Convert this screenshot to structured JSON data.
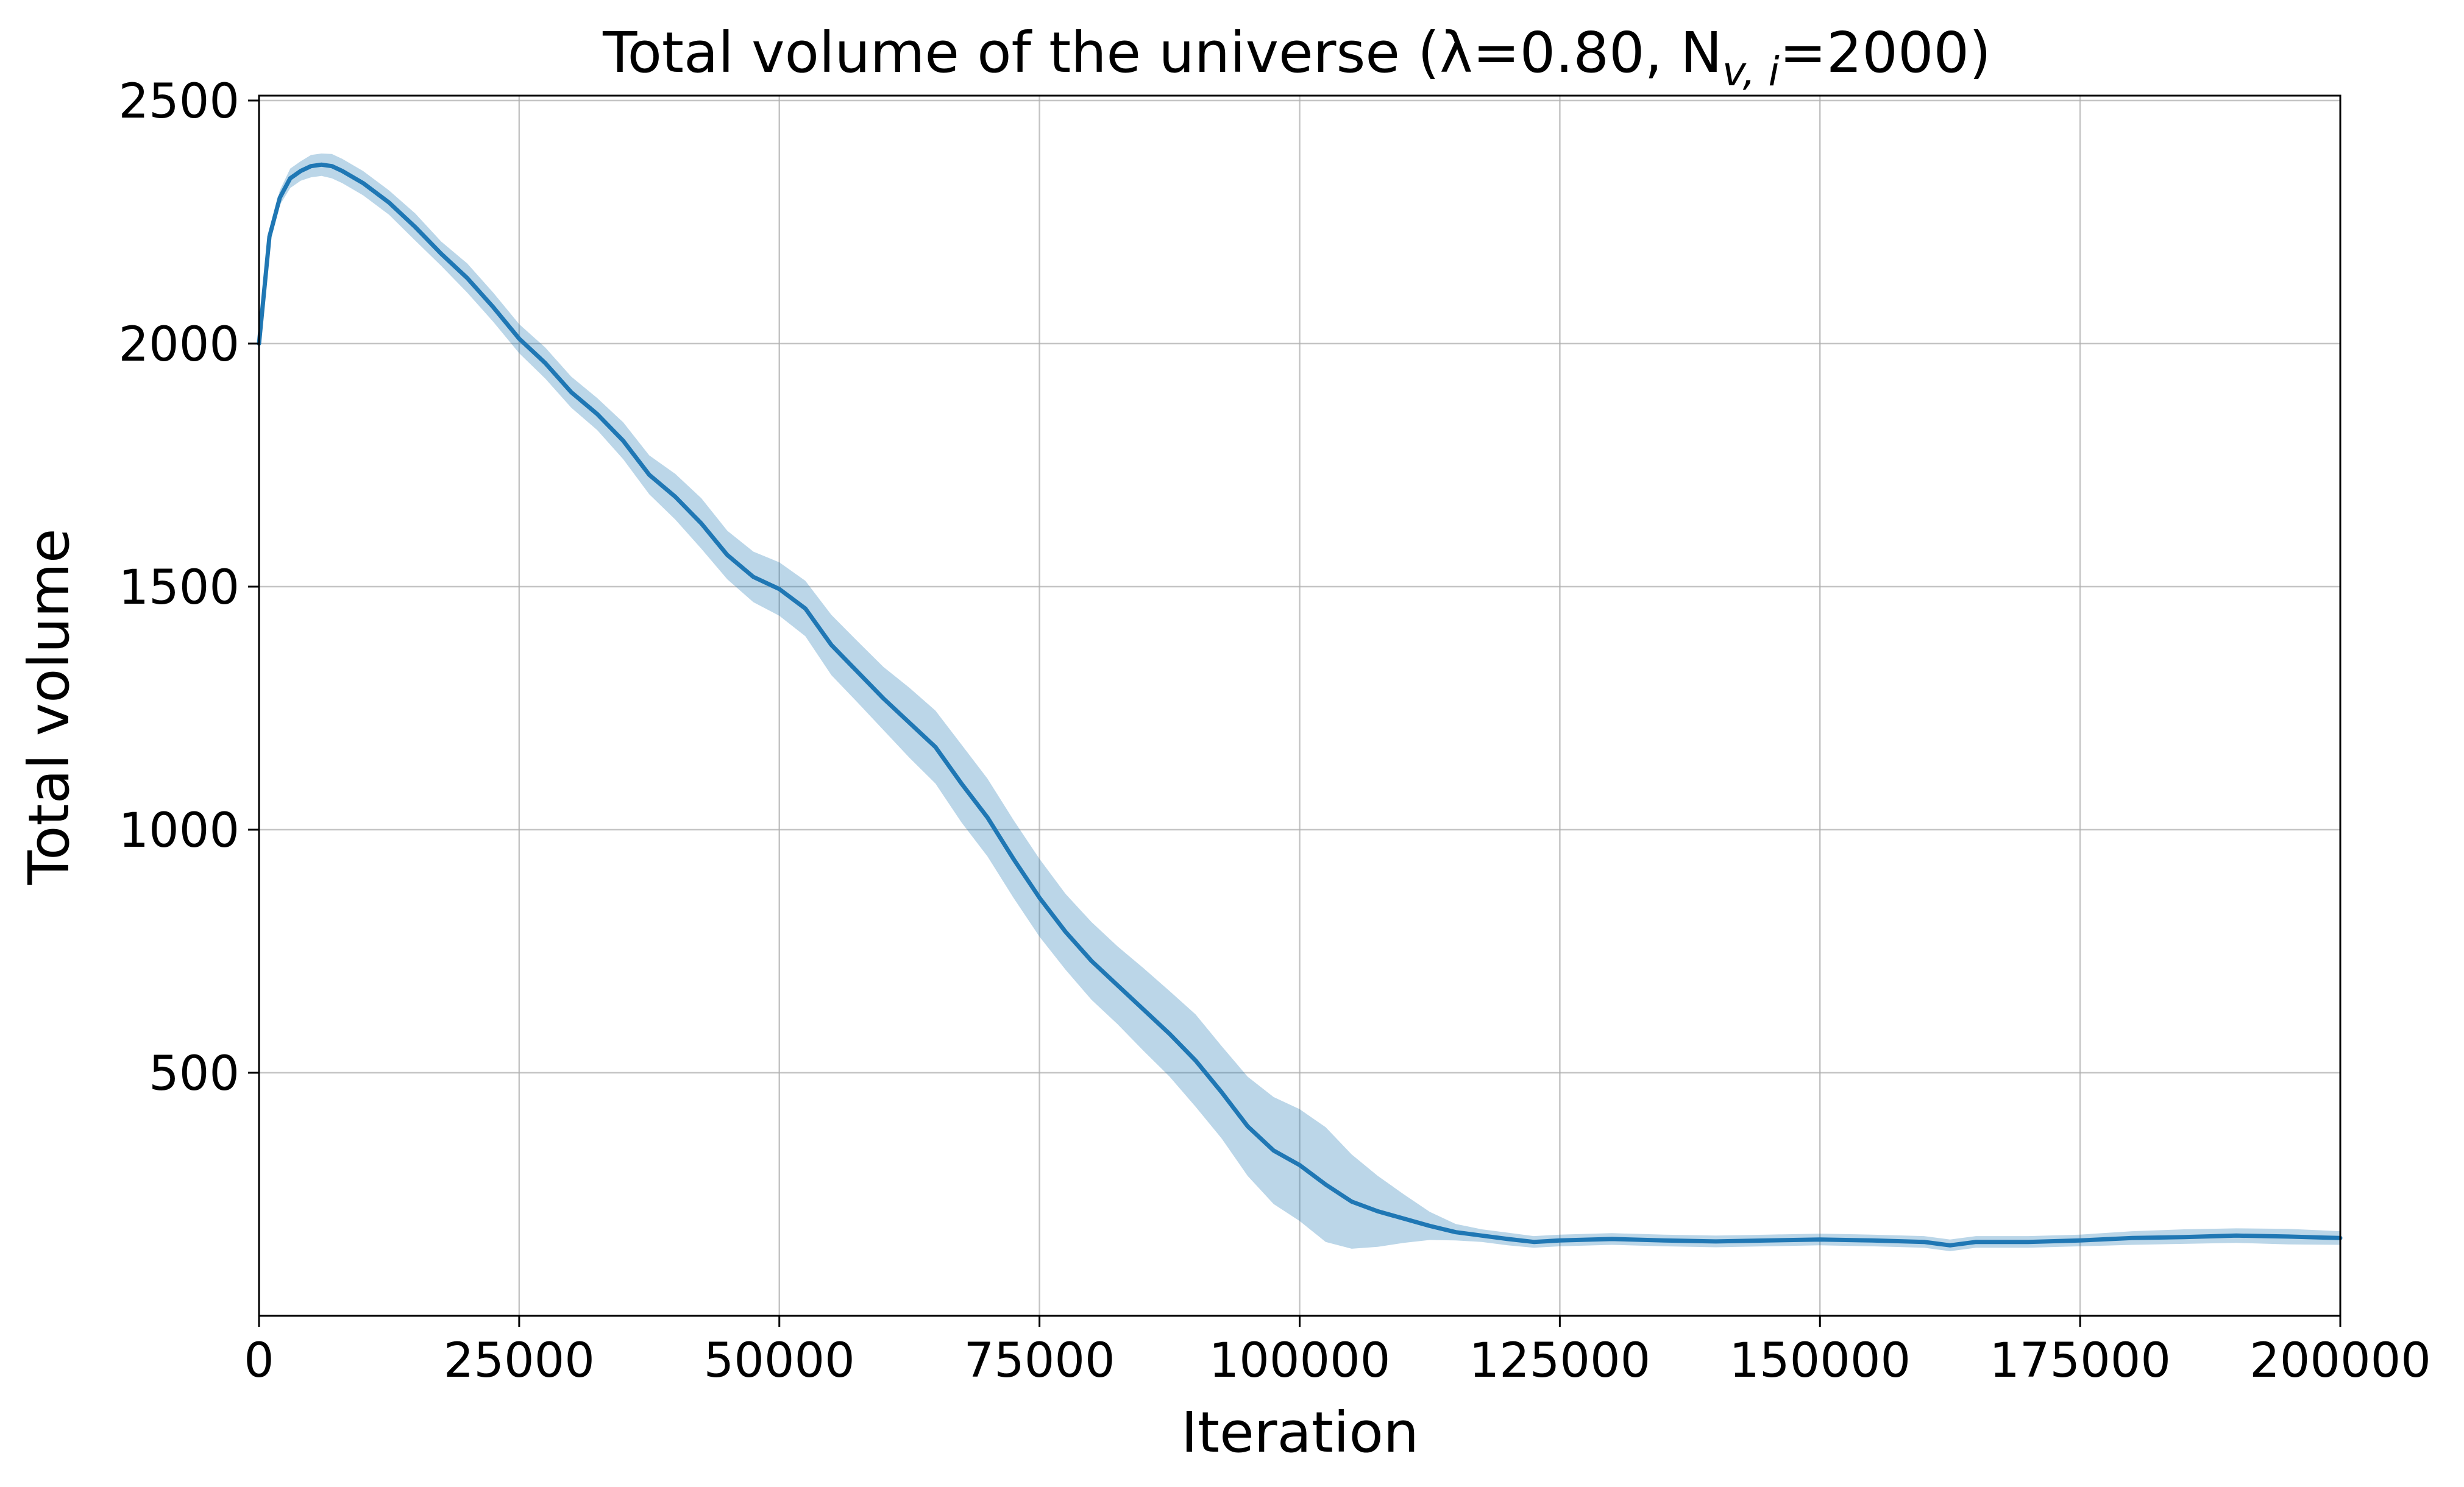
{
  "chart_data": {
    "type": "line",
    "title": "Total volume of the universe (λ=0.80, N",
    "title_subscript": "v, i",
    "title_tail": "=2000)",
    "xlabel": "Iteration",
    "ylabel": "Total volume",
    "xlim": [
      0,
      200000
    ],
    "ylim": [
      0,
      2510
    ],
    "xticks": [
      0,
      25000,
      50000,
      75000,
      100000,
      125000,
      150000,
      175000,
      200000
    ],
    "yticks": [
      500,
      1000,
      1500,
      2000,
      2500
    ],
    "grid": true,
    "legend": "none",
    "colors": {
      "line": "#1f77b4",
      "band": "#1f77b4",
      "grid": "#b0b0b0"
    },
    "series": [
      {
        "x": [
          0,
          1000,
          2000,
          3000,
          4000,
          5000,
          6000,
          7000,
          8000,
          10000,
          12500,
          15000,
          17500,
          20000,
          22500,
          25000,
          27500,
          30000,
          32500,
          35000,
          37500,
          40000,
          42500,
          45000,
          47500,
          50000,
          52500,
          55000,
          57500,
          60000,
          62500,
          65000,
          67500,
          70000,
          72500,
          75000,
          77500,
          80000,
          82500,
          85000,
          87500,
          90000,
          92500,
          95000,
          97500,
          100000,
          102500,
          105000,
          107500,
          110000,
          112500,
          115000,
          117500,
          120000,
          122500,
          125000,
          130000,
          135000,
          140000,
          145000,
          150000,
          155000,
          160000,
          162500,
          165000,
          170000,
          175000,
          180000,
          185000,
          190000,
          195000,
          200000
        ],
        "y": [
          2000,
          2220,
          2300,
          2340,
          2355,
          2365,
          2368,
          2365,
          2355,
          2330,
          2290,
          2240,
          2185,
          2135,
          2075,
          2010,
          1960,
          1900,
          1855,
          1800,
          1730,
          1685,
          1630,
          1565,
          1520,
          1495,
          1455,
          1380,
          1325,
          1270,
          1220,
          1170,
          1095,
          1025,
          940,
          860,
          790,
          730,
          680,
          630,
          580,
          525,
          460,
          390,
          340,
          310,
          270,
          235,
          215,
          200,
          185,
          172,
          165,
          158,
          152,
          155,
          158,
          155,
          153,
          155,
          157,
          155,
          152,
          145,
          152,
          152,
          155,
          160,
          162,
          165,
          163,
          160
        ],
        "lower": [
          2000,
          2210,
          2285,
          2320,
          2335,
          2342,
          2345,
          2340,
          2330,
          2305,
          2265,
          2212,
          2160,
          2105,
          2045,
          1980,
          1928,
          1868,
          1822,
          1762,
          1690,
          1638,
          1578,
          1515,
          1468,
          1440,
          1398,
          1318,
          1262,
          1205,
          1148,
          1095,
          1015,
          945,
          860,
          780,
          712,
          650,
          600,
          545,
          492,
          430,
          365,
          288,
          230,
          195,
          152,
          138,
          142,
          150,
          156,
          155,
          152,
          145,
          140,
          143,
          146,
          143,
          141,
          143,
          145,
          143,
          140,
          133,
          140,
          140,
          143,
          146,
          148,
          150,
          147,
          146
        ],
        "upper": [
          2000,
          2230,
          2315,
          2360,
          2375,
          2388,
          2391,
          2390,
          2380,
          2355,
          2315,
          2268,
          2210,
          2165,
          2105,
          2040,
          1992,
          1932,
          1888,
          1838,
          1770,
          1732,
          1682,
          1615,
          1572,
          1550,
          1512,
          1442,
          1388,
          1335,
          1292,
          1245,
          1175,
          1105,
          1020,
          940,
          868,
          810,
          760,
          715,
          668,
          620,
          555,
          492,
          450,
          425,
          388,
          332,
          288,
          250,
          214,
          189,
          178,
          171,
          164,
          167,
          170,
          167,
          165,
          167,
          169,
          167,
          164,
          157,
          164,
          164,
          167,
          174,
          178,
          180,
          179,
          174
        ]
      }
    ]
  }
}
